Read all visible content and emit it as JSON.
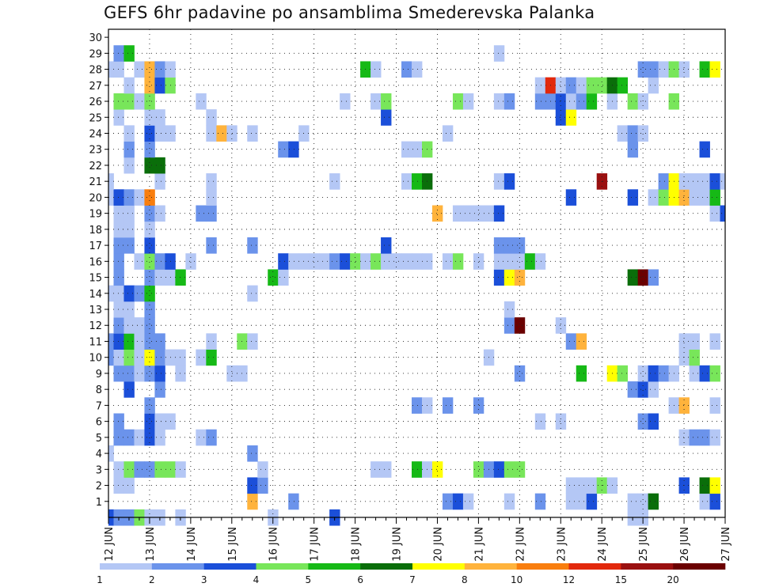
{
  "title": "GEFS 6hr padavine po ansamblima Smederevska Palanka",
  "chart_data": {
    "type": "heatmap",
    "title": "GEFS 6hr padavine po ansamblima Smederevska Palanka",
    "x_ticks": [
      "12 JUN",
      "13 JUN",
      "14 JUN",
      "15 JUN",
      "16 JUN",
      "17 JUN",
      "18 JUN",
      "19 JUN",
      "20 JUN",
      "21 JUN",
      "22 JUN",
      "23 JUN",
      "24 JUN",
      "25 JUN",
      "26 JUN",
      "27 JUN"
    ],
    "y_ticks": [
      "1",
      "2",
      "3",
      "4",
      "5",
      "6",
      "7",
      "8",
      "9",
      "10",
      "11",
      "12",
      "13",
      "14",
      "15",
      "16",
      "17",
      "18",
      "19",
      "20",
      "21",
      "22",
      "23",
      "24",
      "25",
      "26",
      "27",
      "28",
      "29",
      "30"
    ],
    "step_hours": 6,
    "grid": "dotted",
    "colorbar": {
      "labels": [
        "1",
        "2",
        "3",
        "4",
        "5",
        "6",
        "7",
        "8",
        "10",
        "12",
        "15",
        "20"
      ],
      "colors": [
        "#b4c7f5",
        "#6b93eb",
        "#1b4fd9",
        "#78e65a",
        "#16b916",
        "#0a6e0a",
        "#ffff00",
        "#ffb33c",
        "#f97e0e",
        "#e2280c",
        "#9a1010",
        "#6b0000"
      ]
    },
    "cells": [
      [
        0,
        0,
        3
      ],
      [
        0,
        1,
        2
      ],
      [
        0,
        2,
        2
      ],
      [
        0,
        3,
        4
      ],
      [
        0,
        4,
        1
      ],
      [
        0,
        5,
        1
      ],
      [
        0,
        7,
        1
      ],
      [
        0,
        16,
        1
      ],
      [
        0,
        22,
        3
      ],
      [
        0,
        51,
        1
      ],
      [
        0,
        52,
        1
      ],
      [
        0,
        67,
        4
      ],
      [
        0,
        73,
        1
      ],
      [
        0,
        74,
        1
      ],
      [
        0,
        76,
        1
      ],
      [
        1,
        14,
        8
      ],
      [
        1,
        18,
        2
      ],
      [
        1,
        33,
        2
      ],
      [
        1,
        34,
        3
      ],
      [
        1,
        35,
        1
      ],
      [
        1,
        39,
        1
      ],
      [
        1,
        42,
        2
      ],
      [
        1,
        45,
        1
      ],
      [
        1,
        46,
        1
      ],
      [
        1,
        47,
        3
      ],
      [
        1,
        51,
        1
      ],
      [
        1,
        52,
        1
      ],
      [
        1,
        53,
        6
      ],
      [
        1,
        58,
        1
      ],
      [
        1,
        59,
        3
      ],
      [
        2,
        1,
        1
      ],
      [
        2,
        2,
        1
      ],
      [
        2,
        14,
        3
      ],
      [
        2,
        15,
        2
      ],
      [
        2,
        45,
        1
      ],
      [
        2,
        46,
        1
      ],
      [
        2,
        47,
        1
      ],
      [
        2,
        48,
        4
      ],
      [
        2,
        49,
        1
      ],
      [
        2,
        56,
        3
      ],
      [
        2,
        58,
        6
      ],
      [
        2,
        59,
        7
      ],
      [
        3,
        1,
        1
      ],
      [
        3,
        2,
        4
      ],
      [
        3,
        3,
        2
      ],
      [
        3,
        4,
        2
      ],
      [
        3,
        5,
        4
      ],
      [
        3,
        6,
        4
      ],
      [
        3,
        7,
        1
      ],
      [
        3,
        15,
        1
      ],
      [
        3,
        26,
        1
      ],
      [
        3,
        27,
        1
      ],
      [
        3,
        30,
        5
      ],
      [
        3,
        31,
        1
      ],
      [
        3,
        32,
        7
      ],
      [
        3,
        36,
        4
      ],
      [
        3,
        37,
        2
      ],
      [
        3,
        38,
        3
      ],
      [
        3,
        39,
        4
      ],
      [
        3,
        40,
        4
      ],
      [
        4,
        0,
        1
      ],
      [
        4,
        14,
        2
      ],
      [
        5,
        1,
        2
      ],
      [
        5,
        2,
        2
      ],
      [
        5,
        3,
        1
      ],
      [
        5,
        4,
        3
      ],
      [
        5,
        5,
        1
      ],
      [
        5,
        9,
        1
      ],
      [
        5,
        10,
        2
      ],
      [
        5,
        56,
        1
      ],
      [
        5,
        57,
        2
      ],
      [
        5,
        58,
        2
      ],
      [
        5,
        59,
        1
      ],
      [
        6,
        1,
        2
      ],
      [
        6,
        4,
        3
      ],
      [
        6,
        5,
        1
      ],
      [
        6,
        6,
        1
      ],
      [
        6,
        42,
        1
      ],
      [
        6,
        44,
        1
      ],
      [
        6,
        52,
        2
      ],
      [
        6,
        53,
        3
      ],
      [
        7,
        4,
        2
      ],
      [
        7,
        30,
        2
      ],
      [
        7,
        31,
        1
      ],
      [
        7,
        33,
        2
      ],
      [
        7,
        36,
        2
      ],
      [
        7,
        55,
        1
      ],
      [
        7,
        56,
        8
      ],
      [
        7,
        59,
        1
      ],
      [
        8,
        2,
        3
      ],
      [
        8,
        5,
        2
      ],
      [
        8,
        51,
        2
      ],
      [
        8,
        52,
        3
      ],
      [
        8,
        53,
        1
      ],
      [
        9,
        1,
        2
      ],
      [
        9,
        2,
        2
      ],
      [
        9,
        3,
        1
      ],
      [
        9,
        4,
        2
      ],
      [
        9,
        5,
        3
      ],
      [
        9,
        7,
        1
      ],
      [
        9,
        12,
        1
      ],
      [
        9,
        13,
        1
      ],
      [
        9,
        40,
        2
      ],
      [
        9,
        46,
        5
      ],
      [
        9,
        49,
        7
      ],
      [
        9,
        50,
        4
      ],
      [
        9,
        52,
        1
      ],
      [
        9,
        53,
        3
      ],
      [
        9,
        54,
        2
      ],
      [
        9,
        55,
        1
      ],
      [
        9,
        57,
        1
      ],
      [
        9,
        58,
        3
      ],
      [
        9,
        59,
        4
      ],
      [
        10,
        0,
        2
      ],
      [
        10,
        1,
        1
      ],
      [
        10,
        2,
        4
      ],
      [
        10,
        3,
        1
      ],
      [
        10,
        4,
        7
      ],
      [
        10,
        5,
        2
      ],
      [
        10,
        6,
        1
      ],
      [
        10,
        7,
        1
      ],
      [
        10,
        9,
        1
      ],
      [
        10,
        10,
        5
      ],
      [
        10,
        37,
        1
      ],
      [
        10,
        56,
        1
      ],
      [
        10,
        57,
        4
      ],
      [
        11,
        0,
        2
      ],
      [
        11,
        1,
        3
      ],
      [
        11,
        2,
        5
      ],
      [
        11,
        3,
        1
      ],
      [
        11,
        4,
        2
      ],
      [
        11,
        5,
        2
      ],
      [
        11,
        10,
        1
      ],
      [
        11,
        13,
        4
      ],
      [
        11,
        14,
        1
      ],
      [
        11,
        45,
        2
      ],
      [
        11,
        46,
        8
      ],
      [
        11,
        56,
        1
      ],
      [
        11,
        57,
        1
      ],
      [
        11,
        59,
        1
      ],
      [
        12,
        1,
        2
      ],
      [
        12,
        2,
        1
      ],
      [
        12,
        3,
        1
      ],
      [
        12,
        4,
        2
      ],
      [
        12,
        44,
        1
      ],
      [
        12,
        39,
        2
      ],
      [
        12,
        40,
        12
      ],
      [
        13,
        1,
        1
      ],
      [
        13,
        2,
        1
      ],
      [
        13,
        4,
        2
      ],
      [
        13,
        39,
        1
      ],
      [
        14,
        0,
        1
      ],
      [
        14,
        1,
        1
      ],
      [
        14,
        2,
        3
      ],
      [
        14,
        3,
        2
      ],
      [
        14,
        4,
        5
      ],
      [
        14,
        14,
        1
      ],
      [
        15,
        1,
        2
      ],
      [
        15,
        4,
        2
      ],
      [
        15,
        5,
        1
      ],
      [
        15,
        6,
        1
      ],
      [
        15,
        7,
        5
      ],
      [
        15,
        16,
        5
      ],
      [
        15,
        17,
        1
      ],
      [
        15,
        38,
        3
      ],
      [
        15,
        39,
        7
      ],
      [
        15,
        40,
        8
      ],
      [
        15,
        51,
        6
      ],
      [
        15,
        52,
        12
      ],
      [
        15,
        53,
        2
      ],
      [
        16,
        1,
        2
      ],
      [
        16,
        3,
        1
      ],
      [
        16,
        4,
        4
      ],
      [
        16,
        5,
        2
      ],
      [
        16,
        6,
        3
      ],
      [
        16,
        8,
        1
      ],
      [
        16,
        17,
        3
      ],
      [
        16,
        18,
        1
      ],
      [
        16,
        19,
        1
      ],
      [
        16,
        20,
        1
      ],
      [
        16,
        21,
        1
      ],
      [
        16,
        22,
        2
      ],
      [
        16,
        23,
        3
      ],
      [
        16,
        24,
        4
      ],
      [
        16,
        25,
        1
      ],
      [
        16,
        26,
        4
      ],
      [
        16,
        27,
        1
      ],
      [
        16,
        28,
        1
      ],
      [
        16,
        29,
        1
      ],
      [
        16,
        30,
        1
      ],
      [
        16,
        31,
        1
      ],
      [
        16,
        33,
        1
      ],
      [
        16,
        34,
        4
      ],
      [
        16,
        36,
        1
      ],
      [
        16,
        38,
        1
      ],
      [
        16,
        39,
        1
      ],
      [
        16,
        40,
        1
      ],
      [
        16,
        41,
        5
      ],
      [
        16,
        42,
        1
      ],
      [
        17,
        1,
        2
      ],
      [
        17,
        2,
        2
      ],
      [
        17,
        4,
        3
      ],
      [
        17,
        10,
        2
      ],
      [
        17,
        14,
        2
      ],
      [
        17,
        27,
        3
      ],
      [
        17,
        38,
        2
      ],
      [
        17,
        39,
        2
      ],
      [
        17,
        40,
        2
      ],
      [
        18,
        1,
        1
      ],
      [
        18,
        2,
        1
      ],
      [
        18,
        4,
        1
      ],
      [
        19,
        1,
        1
      ],
      [
        19,
        2,
        1
      ],
      [
        19,
        4,
        2
      ],
      [
        19,
        5,
        1
      ],
      [
        19,
        9,
        2
      ],
      [
        19,
        10,
        2
      ],
      [
        19,
        32,
        8
      ],
      [
        19,
        34,
        1
      ],
      [
        19,
        35,
        1
      ],
      [
        19,
        36,
        1
      ],
      [
        19,
        37,
        1
      ],
      [
        19,
        38,
        3
      ],
      [
        19,
        59,
        1
      ],
      [
        19,
        60,
        3
      ],
      [
        20,
        0,
        1
      ],
      [
        20,
        1,
        3
      ],
      [
        20,
        2,
        2
      ],
      [
        20,
        3,
        1
      ],
      [
        20,
        4,
        9
      ],
      [
        20,
        10,
        1
      ],
      [
        20,
        45,
        3
      ],
      [
        20,
        51,
        3
      ],
      [
        20,
        53,
        1
      ],
      [
        20,
        54,
        4
      ],
      [
        20,
        55,
        7
      ],
      [
        20,
        56,
        8
      ],
      [
        20,
        57,
        1
      ],
      [
        20,
        58,
        1
      ],
      [
        20,
        59,
        5
      ],
      [
        21,
        0,
        1
      ],
      [
        21,
        5,
        1
      ],
      [
        21,
        10,
        1
      ],
      [
        21,
        22,
        1
      ],
      [
        21,
        29,
        1
      ],
      [
        21,
        30,
        5
      ],
      [
        21,
        31,
        6
      ],
      [
        21,
        38,
        1
      ],
      [
        21,
        39,
        3
      ],
      [
        21,
        48,
        11
      ],
      [
        21,
        54,
        2
      ],
      [
        21,
        55,
        7
      ],
      [
        21,
        56,
        1
      ],
      [
        21,
        57,
        1
      ],
      [
        21,
        58,
        1
      ],
      [
        21,
        59,
        3
      ],
      [
        21,
        60,
        1
      ],
      [
        22,
        2,
        1
      ],
      [
        22,
        4,
        6
      ],
      [
        22,
        5,
        6
      ],
      [
        23,
        2,
        2
      ],
      [
        23,
        4,
        2
      ],
      [
        23,
        17,
        2
      ],
      [
        23,
        18,
        3
      ],
      [
        23,
        29,
        1
      ],
      [
        23,
        30,
        1
      ],
      [
        23,
        31,
        4
      ],
      [
        23,
        51,
        2
      ],
      [
        23,
        58,
        3
      ],
      [
        24,
        2,
        1
      ],
      [
        24,
        4,
        3
      ],
      [
        24,
        5,
        1
      ],
      [
        24,
        6,
        1
      ],
      [
        24,
        10,
        1
      ],
      [
        24,
        11,
        8
      ],
      [
        24,
        12,
        1
      ],
      [
        24,
        14,
        1
      ],
      [
        24,
        19,
        1
      ],
      [
        24,
        33,
        1
      ],
      [
        24,
        50,
        1
      ],
      [
        24,
        51,
        2
      ],
      [
        24,
        52,
        1
      ],
      [
        25,
        1,
        1
      ],
      [
        25,
        4,
        1
      ],
      [
        25,
        5,
        1
      ],
      [
        25,
        10,
        1
      ],
      [
        25,
        27,
        3
      ],
      [
        25,
        44,
        3
      ],
      [
        25,
        45,
        7
      ],
      [
        26,
        1,
        4
      ],
      [
        26,
        2,
        4
      ],
      [
        26,
        3,
        1
      ],
      [
        26,
        4,
        4
      ],
      [
        26,
        9,
        1
      ],
      [
        26,
        23,
        1
      ],
      [
        26,
        26,
        1
      ],
      [
        26,
        27,
        4
      ],
      [
        26,
        34,
        4
      ],
      [
        26,
        35,
        1
      ],
      [
        26,
        38,
        1
      ],
      [
        26,
        39,
        2
      ],
      [
        26,
        42,
        2
      ],
      [
        26,
        43,
        2
      ],
      [
        26,
        44,
        3
      ],
      [
        26,
        45,
        1
      ],
      [
        26,
        46,
        2
      ],
      [
        26,
        47,
        5
      ],
      [
        26,
        49,
        1
      ],
      [
        26,
        51,
        4
      ],
      [
        26,
        52,
        1
      ],
      [
        26,
        55,
        4
      ],
      [
        27,
        2,
        1
      ],
      [
        27,
        4,
        8
      ],
      [
        27,
        5,
        3
      ],
      [
        27,
        6,
        4
      ],
      [
        27,
        42,
        1
      ],
      [
        27,
        43,
        10
      ],
      [
        27,
        44,
        1
      ],
      [
        27,
        45,
        2
      ],
      [
        27,
        46,
        1
      ],
      [
        27,
        47,
        4
      ],
      [
        27,
        48,
        4
      ],
      [
        27,
        49,
        6
      ],
      [
        27,
        50,
        5
      ],
      [
        27,
        53,
        1
      ],
      [
        28,
        0,
        1
      ],
      [
        28,
        1,
        1
      ],
      [
        28,
        3,
        1
      ],
      [
        28,
        4,
        8
      ],
      [
        28,
        5,
        2
      ],
      [
        28,
        6,
        1
      ],
      [
        28,
        25,
        5
      ],
      [
        28,
        26,
        1
      ],
      [
        28,
        29,
        2
      ],
      [
        28,
        30,
        1
      ],
      [
        28,
        52,
        2
      ],
      [
        28,
        53,
        2
      ],
      [
        28,
        54,
        1
      ],
      [
        28,
        55,
        4
      ],
      [
        28,
        56,
        1
      ],
      [
        28,
        58,
        5
      ],
      [
        28,
        59,
        7
      ],
      [
        29,
        1,
        2
      ],
      [
        29,
        2,
        5
      ],
      [
        29,
        38,
        1
      ]
    ]
  }
}
